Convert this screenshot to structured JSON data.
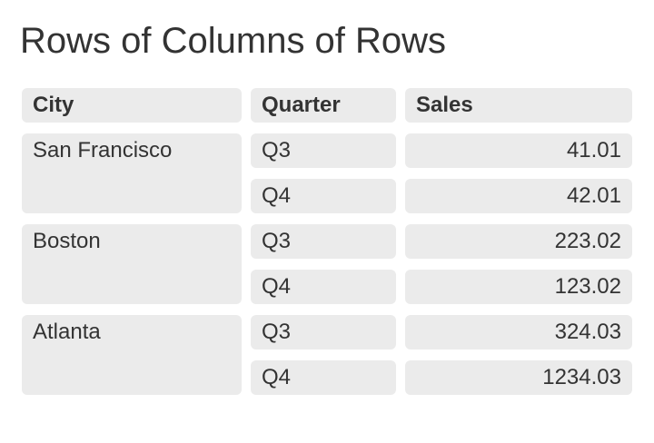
{
  "page": {
    "title": "Rows of Columns of Rows"
  },
  "table": {
    "headers": {
      "city": "City",
      "quarter": "Quarter",
      "sales": "Sales"
    },
    "groups": [
      {
        "city": "San Francisco",
        "rows": [
          {
            "quarter": "Q3",
            "sales": "41.01"
          },
          {
            "quarter": "Q4",
            "sales": "42.01"
          }
        ]
      },
      {
        "city": "Boston",
        "rows": [
          {
            "quarter": "Q3",
            "sales": "223.02"
          },
          {
            "quarter": "Q4",
            "sales": "123.02"
          }
        ]
      },
      {
        "city": "Atlanta",
        "rows": [
          {
            "quarter": "Q3",
            "sales": "324.03"
          },
          {
            "quarter": "Q4",
            "sales": "1234.03"
          }
        ]
      }
    ]
  },
  "colors": {
    "cell_background": "#ebebeb",
    "text": "#333333",
    "page_background": "#ffffff"
  }
}
